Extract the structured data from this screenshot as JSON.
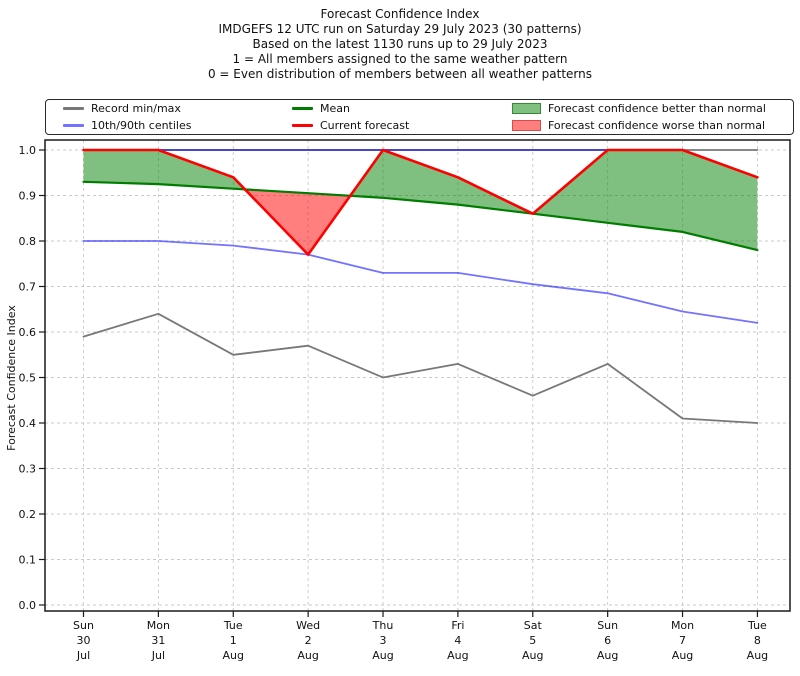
{
  "title": {
    "lines": [
      "Forecast Confidence Index",
      "IMDGEFS 12 UTC run on Saturday 29 July 2023 (30 patterns)",
      "Based on the latest 1130 runs up to 29 July 2023",
      "1 = All members assigned to the same weather pattern",
      "0 = Even distribution of members between all weather patterns"
    ]
  },
  "legend": {
    "items": [
      {
        "label": "Record min/max",
        "swatch": "line",
        "color": "#787878",
        "opacity": 1
      },
      {
        "label": "10th/90th centiles",
        "swatch": "line",
        "color": "#0000ff",
        "opacity": 0.55
      },
      {
        "label": "Mean",
        "swatch": "line",
        "color": "#007c00",
        "opacity": 1
      },
      {
        "label": "Current forecast",
        "swatch": "line",
        "color": "#ff0000",
        "opacity": 1
      },
      {
        "label": "Forecast confidence better than normal",
        "swatch": "patch",
        "fill": "rgba(0,128,0,0.5)",
        "edge": "rgba(0,90,0,0.55)"
      },
      {
        "label": "Forecast confidence worse than normal",
        "swatch": "patch",
        "fill": "rgba(255,0,0,0.5)",
        "edge": "rgba(190,30,30,0.55)"
      }
    ]
  },
  "chart_data": {
    "type": "line",
    "title": "Forecast Confidence Index",
    "xlabel": "",
    "ylabel": "Forecast Confidence Index",
    "ylim": [
      0.0,
      1.0
    ],
    "grid": true,
    "legend_position": "top",
    "yticks": [
      "0.0",
      "0.1",
      "0.2",
      "0.3",
      "0.4",
      "0.5",
      "0.6",
      "0.7",
      "0.8",
      "0.9",
      "1.0"
    ],
    "categories": [
      "Sun 30 Jul",
      "Mon 31 Jul",
      "Tue 1 Aug",
      "Wed 2 Aug",
      "Thu 3 Aug",
      "Fri 4 Aug",
      "Sat 5 Aug",
      "Sun 6 Aug",
      "Mon 7 Aug",
      "Tue 8 Aug"
    ],
    "categories_multiline": [
      [
        "Sun",
        "30",
        "Jul"
      ],
      [
        "Mon",
        "31",
        "Jul"
      ],
      [
        "Tue",
        "1",
        "Aug"
      ],
      [
        "Wed",
        "2",
        "Aug"
      ],
      [
        "Thu",
        "3",
        "Aug"
      ],
      [
        "Fri",
        "4",
        "Aug"
      ],
      [
        "Sat",
        "5",
        "Aug"
      ],
      [
        "Sun",
        "6",
        "Aug"
      ],
      [
        "Mon",
        "7",
        "Aug"
      ],
      [
        "Tue",
        "8",
        "Aug"
      ]
    ],
    "series": [
      {
        "name": "Record max",
        "color": "#787878",
        "opacity": 1,
        "width": 1.8,
        "values": [
          1.0,
          1.0,
          1.0,
          1.0,
          1.0,
          1.0,
          1.0,
          1.0,
          1.0,
          1.0
        ]
      },
      {
        "name": "Record min",
        "color": "#787878",
        "opacity": 1,
        "width": 1.8,
        "values": [
          0.59,
          0.64,
          0.55,
          0.57,
          0.5,
          0.53,
          0.46,
          0.53,
          0.41,
          0.4
        ]
      },
      {
        "name": "90th centile",
        "color": "#0000ff",
        "opacity": 0.55,
        "width": 1.8,
        "values": [
          1.0,
          1.0,
          1.0,
          1.0,
          1.0,
          1.0,
          1.0,
          1.0,
          1.0,
          0.94
        ]
      },
      {
        "name": "10th centile",
        "color": "#0000ff",
        "opacity": 0.55,
        "width": 1.8,
        "values": [
          0.8,
          0.8,
          0.79,
          0.77,
          0.73,
          0.73,
          0.705,
          0.685,
          0.645,
          0.62
        ]
      },
      {
        "name": "Mean",
        "color": "#007c00",
        "opacity": 1,
        "width": 2.2,
        "values": [
          0.93,
          0.925,
          0.915,
          0.905,
          0.895,
          0.88,
          0.86,
          0.84,
          0.82,
          0.78
        ]
      },
      {
        "name": "Current forecast",
        "color": "#ff0000",
        "opacity": 1,
        "width": 2.6,
        "values": [
          1.0,
          1.0,
          0.94,
          0.77,
          1.0,
          0.94,
          0.86,
          1.0,
          1.0,
          0.94
        ]
      }
    ],
    "fills": [
      {
        "name": "Forecast confidence better than normal",
        "rule": "current_above_mean",
        "color": "rgba(0,128,0,0.5)"
      },
      {
        "name": "Forecast confidence worse than normal",
        "rule": "current_below_mean",
        "color": "rgba(255,0,0,0.5)"
      }
    ]
  }
}
